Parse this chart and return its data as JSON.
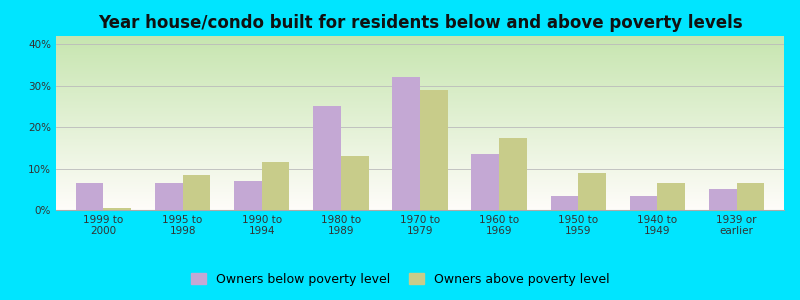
{
  "title": "Year house/condo built for residents below and above poverty levels",
  "categories": [
    "1999 to\n2000",
    "1995 to\n1998",
    "1990 to\n1994",
    "1980 to\n1989",
    "1970 to\n1979",
    "1960 to\n1969",
    "1950 to\n1959",
    "1940 to\n1949",
    "1939 or\nearlier"
  ],
  "below_poverty": [
    6.5,
    6.5,
    7.0,
    25.0,
    32.0,
    13.5,
    3.5,
    3.5,
    5.0
  ],
  "above_poverty": [
    0.5,
    8.5,
    11.5,
    13.0,
    29.0,
    17.5,
    9.0,
    6.5,
    6.5
  ],
  "below_color": "#c4a8d4",
  "above_color": "#c8cc8a",
  "ylim": [
    0,
    42
  ],
  "yticks": [
    0,
    10,
    20,
    30,
    40
  ],
  "ytick_labels": [
    "0%",
    "10%",
    "20%",
    "30%",
    "40%"
  ],
  "legend_below": "Owners below poverty level",
  "legend_above": "Owners above poverty level",
  "outer_bg": "#00e5ff",
  "bar_width": 0.35,
  "title_fontsize": 12,
  "tick_fontsize": 7.5,
  "legend_fontsize": 9
}
